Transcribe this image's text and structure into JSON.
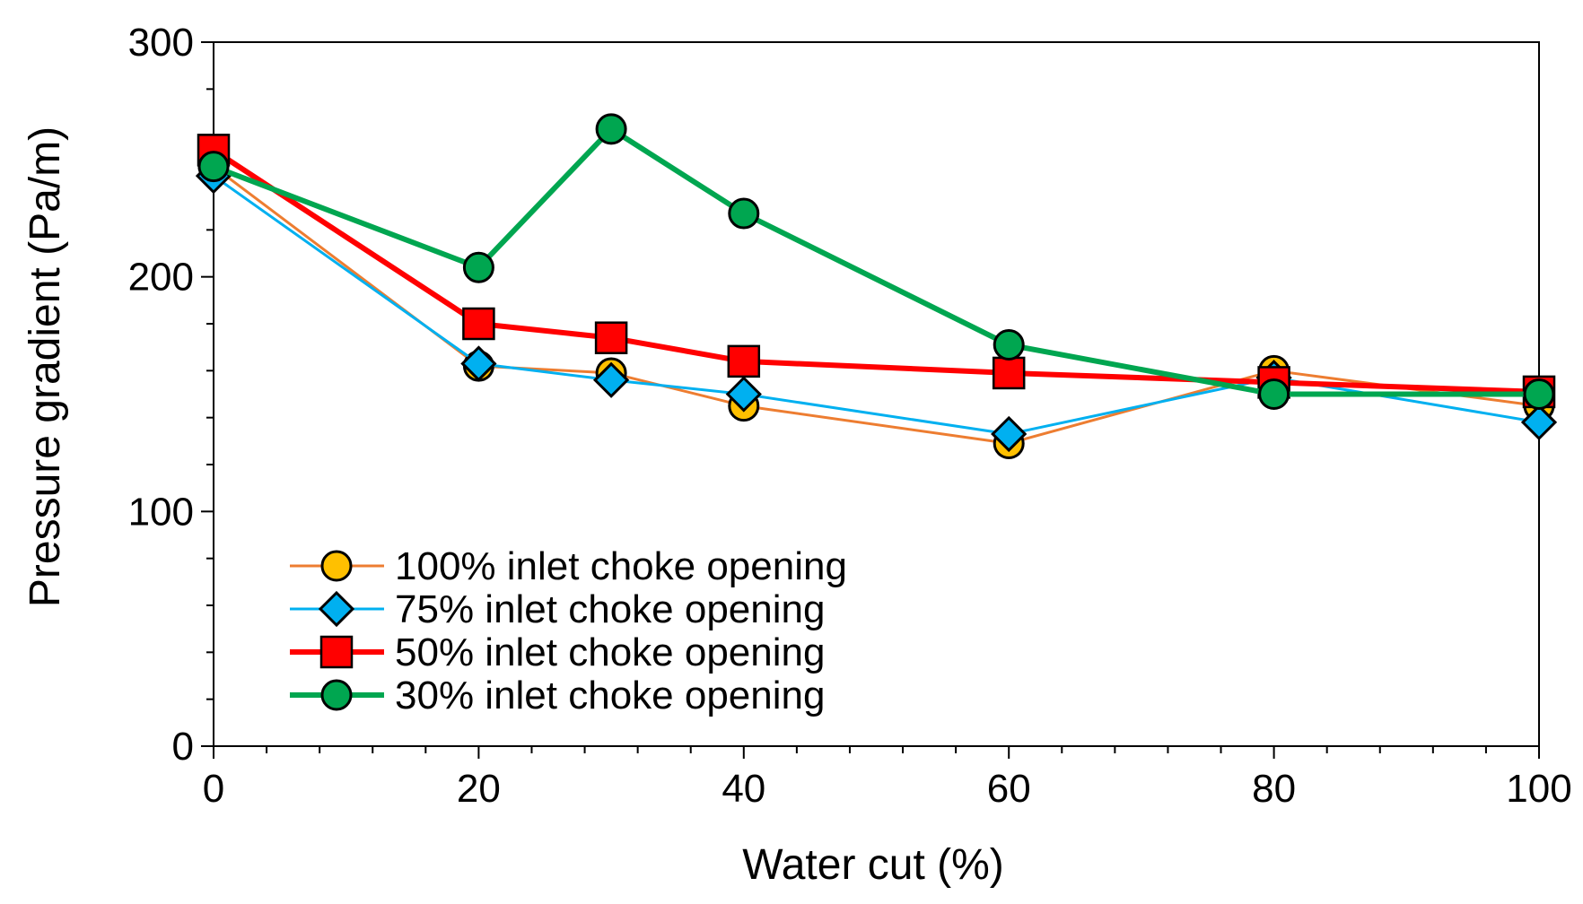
{
  "chart_data": {
    "type": "line",
    "title": "",
    "xlabel": "Water cut (%)",
    "ylabel": "Pressure gradient (Pa/m)",
    "xlim": [
      0,
      100
    ],
    "ylim": [
      0,
      300
    ],
    "x_ticks": [
      0,
      20,
      40,
      60,
      80,
      100
    ],
    "y_ticks": [
      0,
      100,
      200,
      300
    ],
    "x_minor_step": 4,
    "y_minor_step": 20,
    "grid": false,
    "legend_position": "bottom-left",
    "series": [
      {
        "name": "100% inlet choke opening",
        "marker": "circle",
        "line_color": "#ED7D31",
        "marker_fill": "#FFC000",
        "x": [
          0,
          20,
          30,
          40,
          60,
          80,
          100
        ],
        "values": [
          247,
          162,
          159,
          145,
          129,
          160,
          145
        ]
      },
      {
        "name": "75% inlet choke opening",
        "marker": "diamond",
        "line_color": "#00B0F0",
        "marker_fill": "#00B0F0",
        "x": [
          0,
          20,
          30,
          40,
          60,
          80,
          100
        ],
        "values": [
          243,
          163,
          156,
          150,
          133,
          157,
          138
        ]
      },
      {
        "name": "50% inlet choke opening",
        "marker": "square",
        "line_color": "#FF0000",
        "marker_fill": "#FF0000",
        "x": [
          0,
          20,
          30,
          40,
          60,
          80,
          100
        ],
        "values": [
          254,
          180,
          174,
          164,
          159,
          155,
          151
        ]
      },
      {
        "name": "30% inlet choke opening",
        "marker": "circle",
        "line_color": "#00A650",
        "marker_fill": "#00A650",
        "x": [
          0,
          20,
          30,
          40,
          60,
          80,
          100
        ],
        "values": [
          247,
          204,
          263,
          227,
          171,
          150,
          150
        ]
      }
    ]
  }
}
